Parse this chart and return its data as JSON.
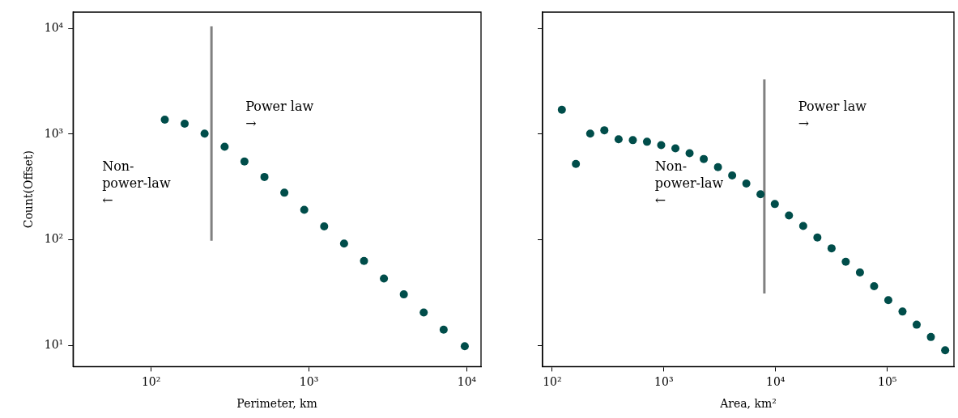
{
  "chart_data": [
    {
      "type": "scatter",
      "xlabel": "Perimeter, km",
      "ylabel": "Count(Offset)",
      "log": "xy",
      "grid": false,
      "marker": "circle",
      "xlim": [
        32,
        12300
      ],
      "ylim": [
        6.3,
        14300
      ],
      "xticks": [
        {
          "value": 100,
          "label": "10²"
        },
        {
          "value": 1000,
          "label": "10³"
        },
        {
          "value": 10000,
          "label": "10⁴"
        }
      ],
      "yticks": [
        {
          "value": 10,
          "label": "10¹"
        },
        {
          "value": 100,
          "label": "10²"
        },
        {
          "value": 1000,
          "label": "10³"
        },
        {
          "value": 10000,
          "label": "10⁴"
        }
      ],
      "series": [
        {
          "color": "#004d4a",
          "x": [
            122,
            163,
            218,
            292,
            390,
            522,
            698,
            933,
            1248,
            1668,
            2231,
            2983,
            3988,
            5332,
            7130,
            9700
          ],
          "values": [
            1373,
            1256,
            1011,
            760,
            551,
            393,
            279,
            192,
            134,
            92,
            63,
            43,
            30.4,
            20.5,
            14.1,
            9.8
          ]
        },
        {
          "type": "line",
          "color": "#808080",
          "marker": "none",
          "x": [
            241,
            241
          ],
          "values": [
            98,
            10500
          ]
        }
      ],
      "annotations": [
        "Power law\n→",
        "Non-\npower-law\n←"
      ]
    },
    {
      "type": "scatter",
      "xlabel": "Area, km²",
      "log": "xy",
      "grid": false,
      "marker": "circle",
      "tick_labels": "x",
      "xlim": [
        82,
        395000
      ],
      "ylim": [
        6.3,
        14300
      ],
      "xticks": [
        {
          "value": 100,
          "label": "10²"
        },
        {
          "value": 1000,
          "label": "10³"
        },
        {
          "value": 10000,
          "label": "10⁴"
        },
        {
          "value": 100000,
          "label": "10⁵"
        }
      ],
      "yticks": [
        {
          "value": 10,
          "label": null
        },
        {
          "value": 100,
          "label": null
        },
        {
          "value": 1000,
          "label": null
        },
        {
          "value": 10000,
          "label": null
        }
      ],
      "series": [
        {
          "color": "#004d4a",
          "x": [
            122,
            163,
            219,
            293,
            393,
            527,
            706,
            946,
            1268,
            1698,
            2275,
            3048,
            4083,
            5470,
            7328,
            9840,
            13180,
            17660,
            23660,
            31700,
            42460,
            56890,
            76210,
            102100,
            136800,
            183200,
            245500,
            329600
          ],
          "values": [
            1700,
            523,
            1011,
            1088,
            894,
            877,
            847,
            788,
            734,
            660,
            582,
            487,
            407,
            341,
            270,
            218,
            170,
            135,
            105,
            83,
            62,
            49,
            36.3,
            26.8,
            20.9,
            15.7,
            12.0,
            9.0
          ]
        },
        {
          "type": "line",
          "color": "#808080",
          "marker": "none",
          "x": [
            7930,
            7930
          ],
          "values": [
            31,
            3300
          ]
        }
      ],
      "annotations": [
        "Power law\n→",
        "Non-\npower-law\n←"
      ]
    }
  ]
}
